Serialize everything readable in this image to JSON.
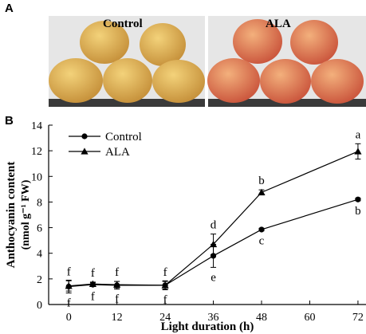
{
  "panels": {
    "a_label": "A",
    "b_label": "B"
  },
  "photos": {
    "control_label": "Control",
    "ala_label": "ALA",
    "control_apple_color": "#d9a64a",
    "ala_apple_color": "#dd6f4a"
  },
  "chart_data": {
    "type": "line",
    "xlabel": "Light duration (h)",
    "ylabel_line1": "Anthocyanin content",
    "ylabel_line2": "(nmol g⁻¹ FW)",
    "x": [
      0,
      6,
      12,
      24,
      36,
      48,
      72
    ],
    "xticks": [
      0,
      12,
      24,
      36,
      48,
      60,
      72
    ],
    "yticks": [
      0,
      2,
      4,
      6,
      8,
      10,
      12,
      14
    ],
    "xlim": [
      -5,
      74
    ],
    "ylim": [
      0,
      14
    ],
    "grid": false,
    "legend_position": "top-left",
    "series": [
      {
        "name": "Control",
        "marker": "circle",
        "values": [
          1.4,
          1.55,
          1.5,
          1.5,
          3.8,
          5.85,
          8.2
        ],
        "errors": [
          0.5,
          0.15,
          0.3,
          0.35,
          0.9,
          0.1,
          0.1
        ],
        "letters": [
          "f",
          "f",
          "f",
          "f",
          "e",
          "c",
          "b"
        ],
        "letter_side": "below"
      },
      {
        "name": "ALA",
        "marker": "triangle",
        "values": [
          1.45,
          1.6,
          1.55,
          1.5,
          4.7,
          8.75,
          11.95
        ],
        "errors": [
          0.4,
          0.15,
          0.25,
          0.3,
          0.8,
          0.2,
          0.6
        ],
        "letters": [
          "f",
          "f",
          "f",
          "f",
          "d",
          "b",
          "a"
        ],
        "letter_side": "above"
      }
    ]
  }
}
